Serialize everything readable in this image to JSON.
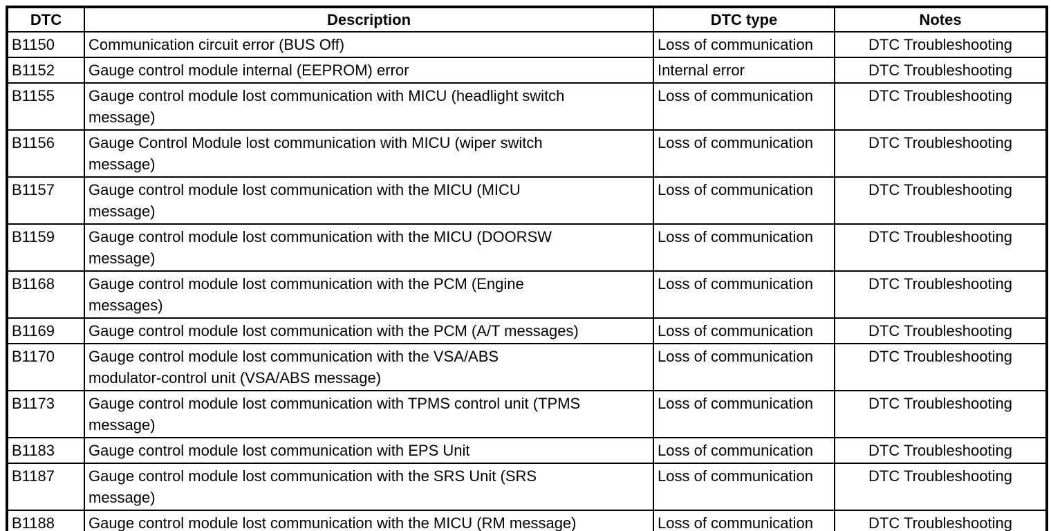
{
  "table": {
    "columns": [
      {
        "key": "dtc",
        "label": "DTC"
      },
      {
        "key": "description",
        "label": "Description"
      },
      {
        "key": "dtc_type",
        "label": "DTC type"
      },
      {
        "key": "notes",
        "label": "Notes"
      }
    ],
    "rows": [
      {
        "dtc": "B1150",
        "description": "Communication circuit error (BUS Off)",
        "dtc_type": "Loss of communication",
        "notes": "DTC Troubleshooting"
      },
      {
        "dtc": "B1152",
        "description": "Gauge control module internal (EEPROM) error",
        "dtc_type": "Internal error",
        "notes": "DTC Troubleshooting"
      },
      {
        "dtc": "B1155",
        "description": "Gauge control module lost communication with MICU (headlight switch\nmessage)",
        "dtc_type": "Loss of communication",
        "notes": "DTC Troubleshooting"
      },
      {
        "dtc": "B1156",
        "description": "Gauge Control Module lost communication with MICU (wiper switch\nmessage)",
        "dtc_type": "Loss of communication",
        "notes": "DTC Troubleshooting"
      },
      {
        "dtc": "B1157",
        "description": "Gauge control module lost communication with the MICU (MICU\nmessage)",
        "dtc_type": "Loss of communication",
        "notes": "DTC Troubleshooting"
      },
      {
        "dtc": "B1159",
        "description": "Gauge control module lost communication with the MICU (DOORSW\nmessage)",
        "dtc_type": "Loss of communication",
        "notes": "DTC Troubleshooting"
      },
      {
        "dtc": "B1168",
        "description": "Gauge control module lost communication with the PCM (Engine\nmessages)",
        "dtc_type": "Loss of communication",
        "notes": "DTC Troubleshooting"
      },
      {
        "dtc": "B1169",
        "description": "Gauge control module lost communication with the PCM (A/T messages)",
        "dtc_type": "Loss of communication",
        "notes": "DTC Troubleshooting"
      },
      {
        "dtc": "B1170",
        "description": "Gauge control module lost communication with the VSA/ABS\nmodulator-control unit (VSA/ABS message)",
        "dtc_type": "Loss of communication",
        "notes": "DTC Troubleshooting"
      },
      {
        "dtc": "B1173",
        "description": "Gauge control module lost communication with TPMS control unit (TPMS\nmessage)",
        "dtc_type": "Loss of communication",
        "notes": "DTC Troubleshooting"
      },
      {
        "dtc": "B1183",
        "description": "Gauge control module lost communication with EPS Unit",
        "dtc_type": "Loss of communication",
        "notes": "DTC Troubleshooting"
      },
      {
        "dtc": "B1187",
        "description": "Gauge control module lost communication with the SRS Unit (SRS\nmessage)",
        "dtc_type": "Loss of communication",
        "notes": "DTC Troubleshooting"
      },
      {
        "dtc": "B1188",
        "description": "Gauge control module lost communication with the MICU (RM message)",
        "dtc_type": "Loss of communication",
        "notes": "DTC Troubleshooting"
      }
    ]
  }
}
